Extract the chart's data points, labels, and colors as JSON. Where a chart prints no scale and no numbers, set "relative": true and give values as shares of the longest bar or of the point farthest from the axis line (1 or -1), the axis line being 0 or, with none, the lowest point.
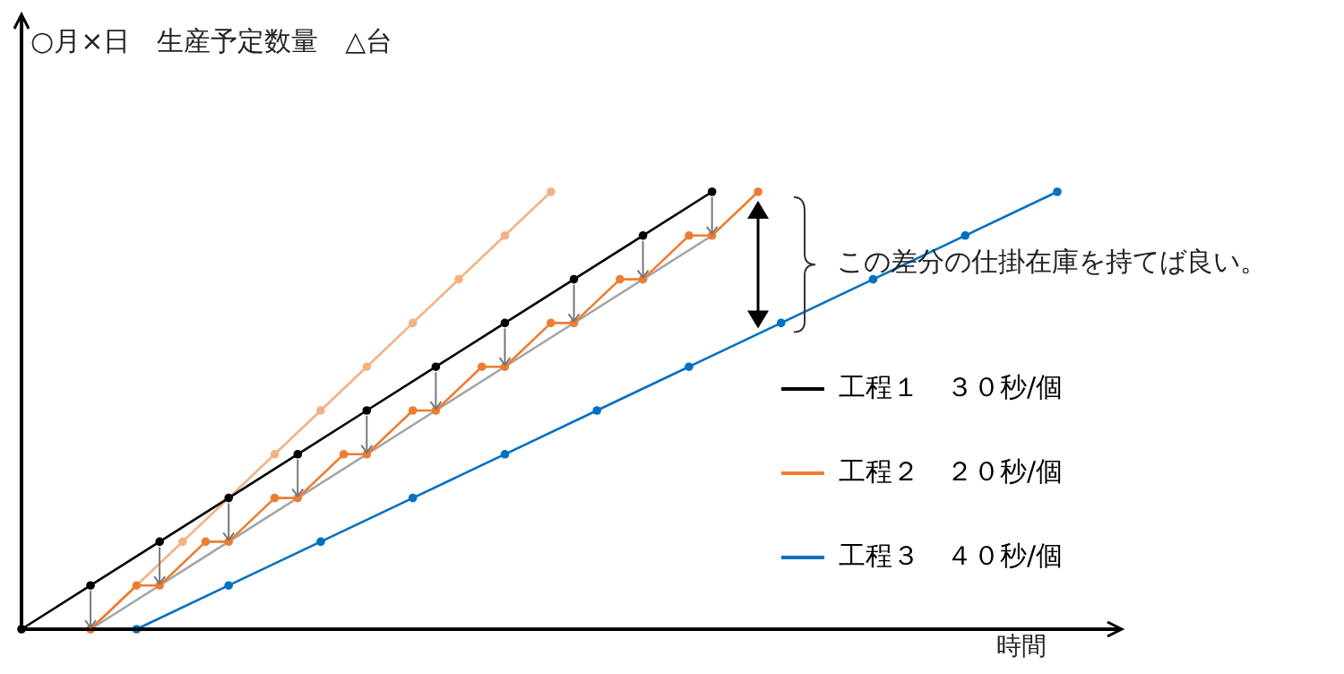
{
  "chart_data": {
    "type": "line",
    "ylabel": "○月×日　生産予定数量　△台",
    "xlabel": "時間",
    "relative": true,
    "marker": "circle",
    "legend": "right",
    "annotations": [
      "この差分の仕掛在庫を持てば良い。"
    ],
    "categories": [
      null,
      null,
      null,
      null,
      null,
      null,
      null,
      null,
      null,
      null,
      null,
      null,
      null,
      null,
      null,
      null,
      null,
      null,
      null,
      null,
      null,
      null,
      null,
      null,
      null,
      null,
      null,
      null,
      null,
      null,
      null,
      null,
      null,
      null,
      null,
      null,
      null,
      null,
      null,
      null,
      null,
      null,
      null,
      null,
      null,
      null
    ],
    "series": [
      {
        "name": "工程１　３０秒/個",
        "color": "#000000",
        "values": [
          0,
          null,
          null,
          0.1,
          null,
          null,
          0.2,
          null,
          null,
          0.3,
          null,
          null,
          0.4,
          null,
          null,
          0.5,
          null,
          null,
          0.6,
          null,
          null,
          0.7,
          null,
          null,
          0.8,
          null,
          null,
          0.9,
          null,
          null,
          1.0,
          null,
          null,
          null,
          null,
          null,
          null,
          null,
          null,
          null,
          null,
          null,
          null,
          null,
          null,
          null
        ]
      },
      {
        "name": "工程２　２０秒/個",
        "color": "#ed7d31",
        "values": [
          null,
          null,
          null,
          0,
          null,
          0.1,
          0.1,
          null,
          0.2,
          0.2,
          null,
          0.3,
          0.3,
          null,
          0.4,
          0.4,
          null,
          0.5,
          0.5,
          null,
          0.6,
          0.6,
          null,
          0.7,
          0.7,
          null,
          0.8,
          0.8,
          null,
          0.9,
          0.9,
          null,
          1.0,
          null,
          null,
          null,
          null,
          null,
          null,
          null,
          null,
          null,
          null,
          null,
          null,
          null
        ]
      },
      {
        "name": "工程３　４０秒/個",
        "color": "#0070c0",
        "values": [
          null,
          null,
          null,
          null,
          null,
          0,
          null,
          null,
          null,
          0.1,
          null,
          null,
          null,
          0.2,
          null,
          null,
          null,
          0.3,
          null,
          null,
          null,
          0.4,
          null,
          null,
          null,
          0.5,
          null,
          null,
          null,
          0.6,
          null,
          null,
          null,
          0.7,
          null,
          null,
          null,
          0.8,
          null,
          null,
          null,
          0.9,
          null,
          null,
          null,
          1.0
        ]
      },
      {
        "color": "#a6a6a6",
        "marker": "none",
        "values": [
          null,
          null,
          null,
          0,
          null,
          null,
          null,
          null,
          null,
          null,
          null,
          null,
          null,
          null,
          null,
          null,
          null,
          null,
          null,
          null,
          null,
          null,
          null,
          null,
          null,
          null,
          null,
          null,
          null,
          null,
          0.9,
          null,
          null,
          null,
          null,
          null,
          null,
          null,
          null,
          null,
          null,
          null,
          null,
          null,
          null,
          null
        ]
      },
      {
        "color": "#f4b183",
        "values": [
          null,
          null,
          null,
          0,
          null,
          null,
          null,
          0.2,
          null,
          null,
          null,
          0.4,
          null,
          0.5,
          null,
          0.6,
          null,
          0.7,
          null,
          0.8,
          null,
          0.9,
          null,
          1.0,
          null,
          null,
          null,
          null,
          null,
          null,
          null,
          null,
          null,
          null,
          null,
          null,
          null,
          null,
          null,
          null,
          null,
          null,
          null,
          null,
          null,
          null
        ]
      }
    ]
  }
}
